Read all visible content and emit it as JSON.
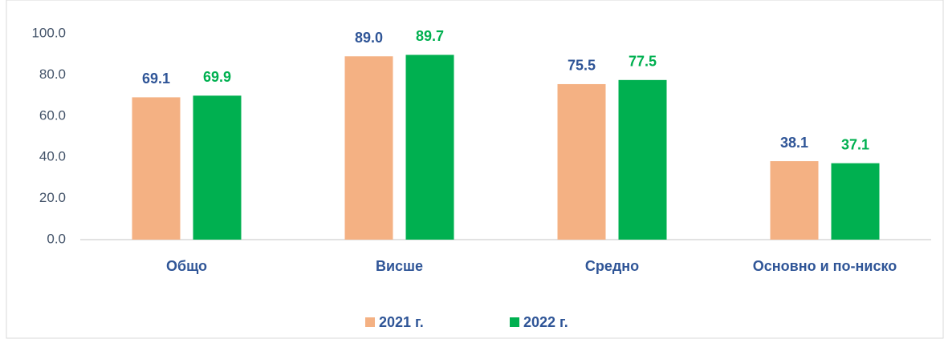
{
  "chart_data": {
    "type": "bar",
    "categories": [
      "Общо",
      "Висше",
      "Средно",
      "Основно и по-ниско"
    ],
    "series": [
      {
        "name": "2021 г.",
        "color": "#F4B183",
        "label_color": "#2F5597",
        "values": [
          69.1,
          89.0,
          75.5,
          38.1
        ],
        "value_labels": [
          "69.1",
          "89.0",
          "75.5",
          "38.1"
        ]
      },
      {
        "name": "2022 г.",
        "color": "#00B050",
        "label_color": "#00B050",
        "values": [
          69.9,
          89.7,
          77.5,
          37.1
        ],
        "value_labels": [
          "69.9",
          "89.7",
          "77.5",
          "37.1"
        ]
      }
    ],
    "ylim": [
      0,
      100
    ],
    "yticks": [
      {
        "value": 0,
        "label": "0.0"
      },
      {
        "value": 20,
        "label": "20.0"
      },
      {
        "value": 40,
        "label": "40.0"
      },
      {
        "value": 60,
        "label": "60.0"
      },
      {
        "value": 80,
        "label": "80.0"
      },
      {
        "value": 100,
        "label": "100.0"
      }
    ],
    "grid": false,
    "legend": "bottom"
  }
}
